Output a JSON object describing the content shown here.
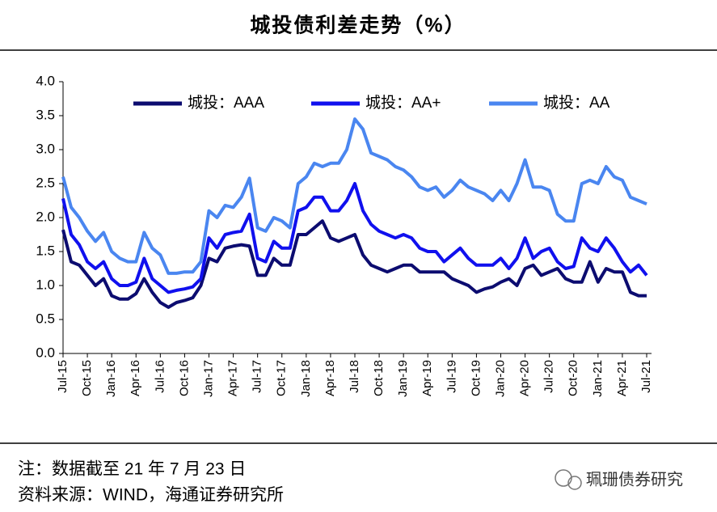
{
  "chart_data": {
    "type": "line",
    "title": "城投债利差走势（%）",
    "categories": [
      "Jul-15",
      null,
      null,
      "Oct-15",
      null,
      null,
      "Jan-16",
      null,
      null,
      "Apr-16",
      null,
      null,
      "Jul-16",
      null,
      null,
      "Oct-16",
      null,
      null,
      "Jan-17",
      null,
      null,
      "Apr-17",
      null,
      null,
      "Jul-17",
      null,
      null,
      "Oct-17",
      null,
      null,
      "Jan-18",
      null,
      null,
      "Apr-18",
      null,
      null,
      "Jul-18",
      null,
      null,
      "Oct-18",
      null,
      null,
      "Jan-19",
      null,
      null,
      "Apr-19",
      null,
      null,
      "Jul-19",
      null,
      null,
      "Oct-19",
      null,
      null,
      "Jan-20",
      null,
      null,
      "Apr-20",
      null,
      null,
      "Jul-20",
      null,
      null,
      "Oct-20",
      null,
      null,
      "Jan-21",
      null,
      null,
      "Apr-21",
      null,
      null,
      "Jul-21"
    ],
    "series": [
      {
        "name": "城投：AAA",
        "color": "#0c0c70",
        "values": [
          1.82,
          1.35,
          1.3,
          1.15,
          1.0,
          1.1,
          0.85,
          0.8,
          0.8,
          0.88,
          1.1,
          0.9,
          0.75,
          0.68,
          0.75,
          0.78,
          0.82,
          1.0,
          1.4,
          1.35,
          1.55,
          1.58,
          1.6,
          1.58,
          1.15,
          1.15,
          1.4,
          1.3,
          1.3,
          1.75,
          1.75,
          1.85,
          1.95,
          1.7,
          1.65,
          1.7,
          1.75,
          1.45,
          1.3,
          1.25,
          1.2,
          1.25,
          1.3,
          1.3,
          1.2,
          1.2,
          1.2,
          1.2,
          1.1,
          1.05,
          1.0,
          0.9,
          0.95,
          0.98,
          1.05,
          1.1,
          1.0,
          1.25,
          1.3,
          1.15,
          1.2,
          1.25,
          1.1,
          1.05,
          1.05,
          1.35,
          1.05,
          1.25,
          1.2,
          1.2,
          0.9,
          0.85,
          0.85
        ]
      },
      {
        "name": "城投：AA+",
        "color": "#1010ee",
        "values": [
          2.28,
          1.75,
          1.6,
          1.35,
          1.25,
          1.35,
          1.1,
          1.0,
          1.0,
          1.05,
          1.4,
          1.1,
          1.0,
          0.9,
          0.93,
          0.95,
          0.98,
          1.1,
          1.7,
          1.55,
          1.75,
          1.78,
          1.8,
          2.05,
          1.4,
          1.35,
          1.65,
          1.55,
          1.55,
          2.1,
          2.15,
          2.3,
          2.3,
          2.1,
          2.1,
          2.25,
          2.5,
          2.1,
          1.9,
          1.8,
          1.75,
          1.7,
          1.75,
          1.7,
          1.55,
          1.5,
          1.5,
          1.35,
          1.45,
          1.55,
          1.4,
          1.3,
          1.3,
          1.3,
          1.4,
          1.25,
          1.4,
          1.7,
          1.4,
          1.5,
          1.55,
          1.35,
          1.25,
          1.28,
          1.7,
          1.55,
          1.5,
          1.7,
          1.55,
          1.35,
          1.2,
          1.3,
          1.15
        ]
      },
      {
        "name": "城投：AA",
        "color": "#4a86f0",
        "values": [
          2.6,
          2.15,
          2.0,
          1.8,
          1.65,
          1.78,
          1.5,
          1.4,
          1.35,
          1.35,
          1.78,
          1.55,
          1.45,
          1.18,
          1.18,
          1.2,
          1.2,
          1.35,
          2.1,
          2.0,
          2.18,
          2.15,
          2.3,
          2.58,
          1.85,
          1.8,
          2.0,
          1.95,
          1.85,
          2.5,
          2.6,
          2.8,
          2.75,
          2.8,
          2.8,
          3.0,
          3.45,
          3.3,
          2.95,
          2.9,
          2.85,
          2.75,
          2.7,
          2.6,
          2.45,
          2.4,
          2.45,
          2.3,
          2.4,
          2.55,
          2.45,
          2.4,
          2.35,
          2.25,
          2.4,
          2.25,
          2.5,
          2.85,
          2.45,
          2.45,
          2.4,
          2.05,
          1.95,
          1.95,
          2.5,
          2.55,
          2.5,
          2.75,
          2.6,
          2.55,
          2.3,
          2.25,
          2.2
        ]
      }
    ],
    "ylim": [
      0,
      4
    ],
    "yticks": [
      {
        "value": 0,
        "label": "0.0"
      },
      {
        "value": 0.5,
        "label": "0.5"
      },
      {
        "value": 1,
        "label": "1.0"
      },
      {
        "value": 1.5,
        "label": "1.5"
      },
      {
        "value": 2,
        "label": "2.0"
      },
      {
        "value": 2.5,
        "label": "2.5"
      },
      {
        "value": 3,
        "label": "3.0"
      },
      {
        "value": 3.5,
        "label": "3.5"
      },
      {
        "value": 4,
        "label": "4.0"
      }
    ],
    "grid": false,
    "legend": "top"
  },
  "notes": [
    "注：数据截至 21 年 7 月 23 日",
    "资料来源：WIND，海通证券研究所"
  ],
  "watermark": "珮珊债券研究"
}
